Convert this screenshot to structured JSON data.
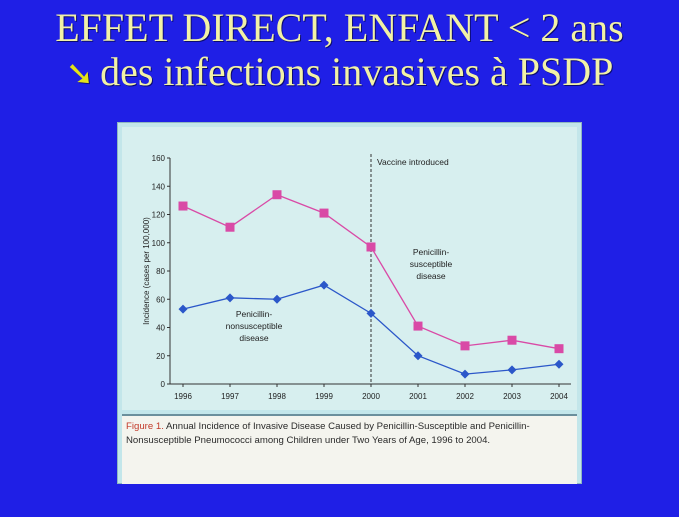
{
  "slide": {
    "title_line1": "EFFET DIRECT, ENFANT < 2 ans",
    "title_line2": "des infections invasives à PSDP",
    "arrow_icon": "down-right-arrow"
  },
  "figure": {
    "caption_label": "Figure 1.",
    "caption_text": "Annual Incidence of Invasive Disease Caused by Penicillin-Susceptible and Penicillin-Nonsusceptible Pneumococci among Children under Two Years of Age, 1996 to 2004."
  },
  "chart_data": {
    "type": "line",
    "x": [
      1996,
      1997,
      1998,
      1999,
      2000,
      2001,
      2002,
      2003,
      2004
    ],
    "ylabel": "Incidence (cases per 100,000)",
    "ylim": [
      0,
      160
    ],
    "yticks": [
      0,
      20,
      40,
      60,
      80,
      100,
      120,
      140,
      160
    ],
    "grid": false,
    "series": [
      {
        "name": "Penicillin-susceptible disease",
        "color": "#d94aa6",
        "marker": "square",
        "values": [
          126,
          111,
          134,
          121,
          97,
          41,
          27,
          31,
          25
        ]
      },
      {
        "name": "Penicillin-nonsusceptible disease",
        "color": "#2b57c9",
        "marker": "diamond",
        "values": [
          53,
          61,
          60,
          70,
          50,
          20,
          7,
          10,
          14
        ]
      }
    ],
    "annotations": [
      {
        "text": "Vaccine introduced",
        "x": 2000
      }
    ],
    "series_labels": [
      {
        "lines": [
          "Penicillin-",
          "susceptible",
          "disease"
        ]
      },
      {
        "lines": [
          "Penicillin-",
          "nonsusceptible",
          "disease"
        ]
      }
    ]
  }
}
